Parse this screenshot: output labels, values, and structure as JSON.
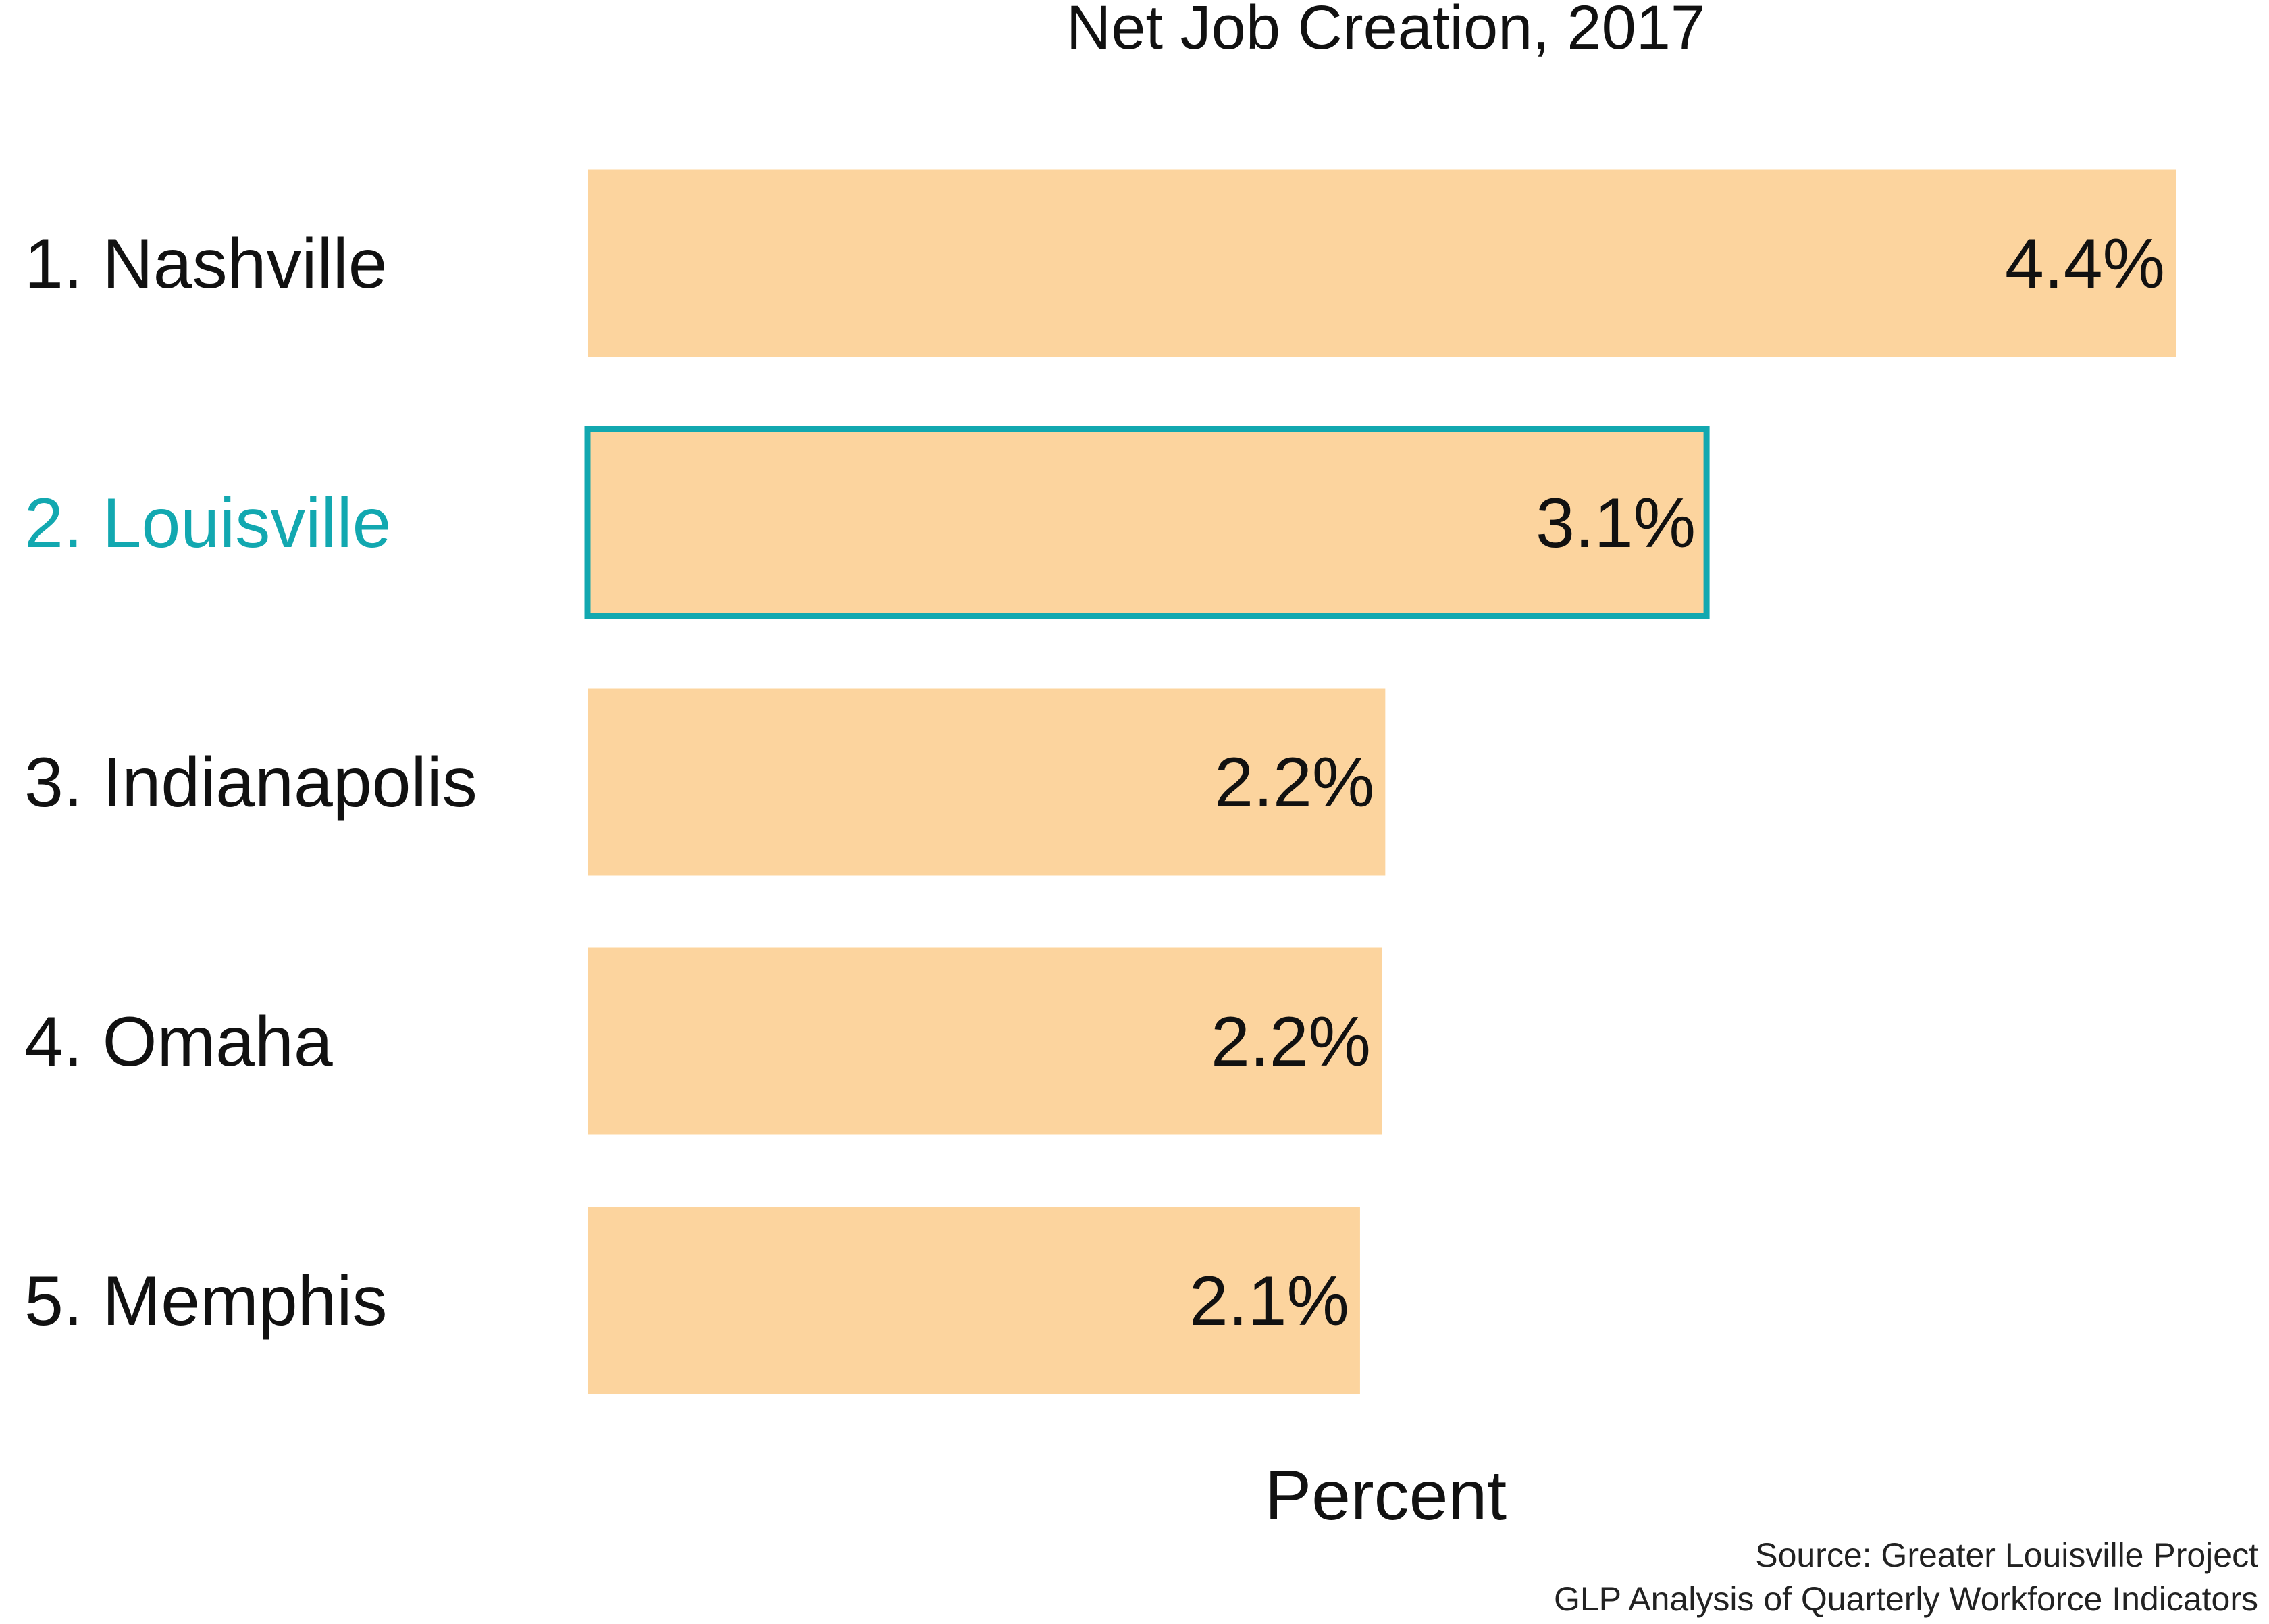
{
  "chart_data": {
    "type": "bar",
    "orientation": "horizontal",
    "title": "Net Job Creation, 2017",
    "xlabel": "Percent",
    "ylabel": "",
    "categories": [
      "1. Nashville",
      "2. Louisville",
      "3. Indianapolis",
      "4. Omaha",
      "5. Memphis"
    ],
    "values": [
      4.4,
      3.1,
      2.21,
      2.2,
      2.14
    ],
    "value_labels": [
      "4.4%",
      "3.1%",
      "2.2%",
      "2.2%",
      "2.1%"
    ],
    "highlight_index": 1,
    "xlim": [
      0,
      4.4
    ],
    "grid": false,
    "legend": "none",
    "source": [
      "Source: Greater Louisville Project",
      "GLP Analysis of Quarterly Workforce Indicators"
    ],
    "colors": {
      "bar": "#fcd49e",
      "highlight": "#12a8b0",
      "text": "#111111"
    }
  }
}
